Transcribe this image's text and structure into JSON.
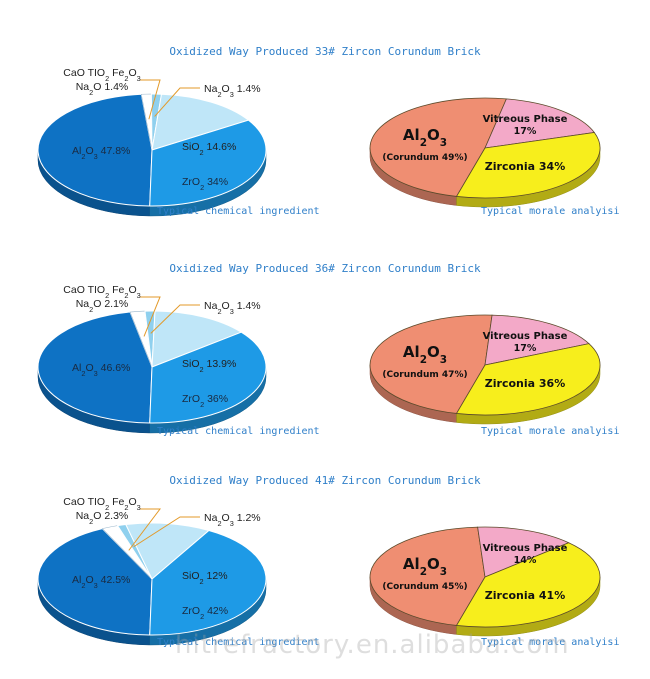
{
  "chart_data": [
    {
      "type": "pie",
      "title": "Oxidized Way Produced 33# Zircon Corundum Brick",
      "left": {
        "caption": "Typical chemical ingredient",
        "minor_label_line1": "CaO TIO2 Fe2O3",
        "minor_label_line2": "Na2O 1.4%",
        "slices": [
          {
            "name": "Al2O3",
            "value": 47.8,
            "label": "Al2O3 47.8%"
          },
          {
            "name": "CaO TIO2 Fe2O3 Na2O",
            "value": 1.4
          },
          {
            "name": "Na2O3",
            "value": 1.4,
            "label": "Na2O3 1.4%"
          },
          {
            "name": "SiO2",
            "value": 14.6,
            "label": "SiO2 14.6%"
          },
          {
            "name": "ZrO2",
            "value": 34,
            "label": "ZrO2 34%"
          }
        ]
      },
      "right": {
        "caption": "Typical morale analyisi",
        "al_label": "Al2O3",
        "al_sub": "(Corundum 49%)",
        "vitreous_label": "Vitreous Phase",
        "vitreous_value": "17%",
        "zirconia_label": "Zirconia 34%",
        "slices": [
          {
            "name": "Corundum",
            "value": 49
          },
          {
            "name": "Vitreous Phase",
            "value": 17
          },
          {
            "name": "Zirconia",
            "value": 34
          }
        ]
      }
    },
    {
      "type": "pie",
      "title": "Oxidized Way Produced 36# Zircon Corundum Brick",
      "left": {
        "caption": "Typical chemical ingredient",
        "minor_label_line1": "CaO TIO2 Fe2O3",
        "minor_label_line2": "Na2O 2.1%",
        "slices": [
          {
            "name": "Al2O3",
            "value": 46.6,
            "label": "Al2O3 46.6%"
          },
          {
            "name": "CaO TIO2 Fe2O3 Na2O",
            "value": 2.1
          },
          {
            "name": "Na2O3",
            "value": 1.4,
            "label": "Na2O3 1.4%"
          },
          {
            "name": "SiO2",
            "value": 13.9,
            "label": "SiO2 13.9%"
          },
          {
            "name": "ZrO2",
            "value": 36,
            "label": "ZrO2 36%"
          }
        ]
      },
      "right": {
        "caption": "Typical morale analyisi",
        "al_label": "Al2O3",
        "al_sub": "(Corundum 47%)",
        "vitreous_label": "Vitreous Phase",
        "vitreous_value": "17%",
        "zirconia_label": "Zirconia 36%",
        "slices": [
          {
            "name": "Corundum",
            "value": 47
          },
          {
            "name": "Vitreous Phase",
            "value": 17
          },
          {
            "name": "Zirconia",
            "value": 36
          }
        ]
      }
    },
    {
      "type": "pie",
      "title": "Oxidized Way Produced 41# Zircon Corundum Brick",
      "left": {
        "caption": "Typical chemical ingredient",
        "minor_label_line1": "CaO TIO2 Fe2O3",
        "minor_label_line2": "Na2O 2.3%",
        "slices": [
          {
            "name": "Al2O3",
            "value": 42.5,
            "label": "Al2O3 42.5%"
          },
          {
            "name": "CaO TIO2 Fe2O3 Na2O",
            "value": 2.3
          },
          {
            "name": "Na2O3",
            "value": 1.2,
            "label": "Na2O3 1.2%"
          },
          {
            "name": "SiO2",
            "value": 12,
            "label": "SiO2 12%"
          },
          {
            "name": "ZrO2",
            "value": 42,
            "label": "ZrO2 42%"
          }
        ]
      },
      "right": {
        "caption": "Typical morale analyisi",
        "al_label": "Al2O3",
        "al_sub": "(Corundum 45%)",
        "vitreous_label": "Vitreous Phase",
        "vitreous_value": "14%",
        "zirconia_label": "Zirconia 41%",
        "slices": [
          {
            "name": "Corundum",
            "value": 45
          },
          {
            "name": "Vitreous Phase",
            "value": 14
          },
          {
            "name": "Zirconia",
            "value": 41
          }
        ]
      }
    }
  ],
  "colors": {
    "al2o3": "#0e72c4",
    "minor": "#ffffff",
    "na2o3": "#8fd0ee",
    "sio2": "#bfe6f8",
    "zro2": "#1e9ae6",
    "corundum": "#ef8e72",
    "vitreous": "#f3a9c8",
    "zirconia": "#f7ee1c",
    "title": "#2f7fc9"
  },
  "watermark": "hitrefractory.en.alibaba.com"
}
